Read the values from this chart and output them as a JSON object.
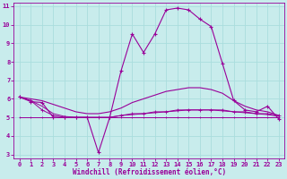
{
  "xlabel": "Windchill (Refroidissement éolien,°C)",
  "xlim": [
    -0.5,
    23.5
  ],
  "ylim": [
    2.8,
    11.2
  ],
  "xticks": [
    0,
    1,
    2,
    3,
    4,
    5,
    6,
    7,
    8,
    9,
    10,
    11,
    12,
    13,
    14,
    15,
    16,
    17,
    18,
    19,
    20,
    21,
    22,
    23
  ],
  "yticks": [
    3,
    4,
    5,
    6,
    7,
    8,
    9,
    10,
    11
  ],
  "bg_color": "#c8ecec",
  "line_color": "#990099",
  "grid_color": "#aadddd",
  "main_line_x": [
    0,
    1,
    2,
    3,
    4,
    5,
    6,
    7,
    8,
    9,
    10,
    11,
    12,
    13,
    14,
    15,
    16,
    17,
    18,
    19,
    20,
    21,
    22,
    23
  ],
  "main_line_y": [
    6.1,
    5.85,
    5.8,
    5.0,
    5.0,
    5.0,
    5.0,
    3.1,
    5.0,
    7.5,
    9.5,
    8.5,
    9.5,
    10.8,
    10.9,
    10.8,
    10.3,
    9.9,
    7.9,
    5.9,
    5.4,
    5.3,
    5.6,
    4.9
  ],
  "rising_line_x": [
    0,
    1,
    2,
    3,
    4,
    5,
    6,
    7,
    8,
    9,
    10,
    11,
    12,
    13,
    14,
    15,
    16,
    17,
    18,
    19,
    20,
    21,
    22,
    23
  ],
  "rising_line_y": [
    6.1,
    6.0,
    5.9,
    5.7,
    5.5,
    5.3,
    5.2,
    5.2,
    5.3,
    5.5,
    5.8,
    6.0,
    6.2,
    6.4,
    6.5,
    6.6,
    6.6,
    6.5,
    6.3,
    5.9,
    5.6,
    5.4,
    5.3,
    5.1
  ],
  "flat1_x": [
    0,
    1,
    2,
    3,
    4,
    5,
    6,
    7,
    8,
    9,
    10,
    11,
    12,
    13,
    14,
    15,
    16,
    17,
    18,
    19,
    20,
    21,
    22,
    23
  ],
  "flat1_y": [
    6.1,
    5.9,
    5.4,
    5.1,
    5.0,
    5.0,
    5.0,
    5.0,
    5.0,
    5.1,
    5.2,
    5.2,
    5.3,
    5.3,
    5.4,
    5.4,
    5.4,
    5.4,
    5.4,
    5.3,
    5.3,
    5.2,
    5.2,
    5.1
  ],
  "flat2_x": [
    0,
    1,
    2,
    3,
    4,
    5,
    6,
    7,
    8,
    9,
    10,
    11,
    12,
    13,
    14,
    15,
    16,
    17,
    18,
    19,
    20,
    21,
    22,
    23
  ],
  "flat2_y": [
    6.1,
    5.9,
    5.6,
    5.2,
    5.05,
    5.0,
    5.0,
    5.0,
    5.0,
    5.1,
    5.15,
    5.2,
    5.25,
    5.3,
    5.35,
    5.4,
    5.4,
    5.4,
    5.35,
    5.3,
    5.25,
    5.2,
    5.15,
    5.05
  ],
  "flat3_x": [
    0,
    1,
    2,
    3,
    4,
    5,
    6,
    7,
    8,
    9,
    10,
    11,
    12,
    13,
    14,
    15,
    16,
    17,
    18,
    19,
    20,
    21,
    22,
    23
  ],
  "flat3_y": [
    5.0,
    5.0,
    5.0,
    5.0,
    5.0,
    5.0,
    5.0,
    5.0,
    5.0,
    5.0,
    5.0,
    5.0,
    5.0,
    5.0,
    5.0,
    5.0,
    5.0,
    5.0,
    5.0,
    5.0,
    5.0,
    5.0,
    5.0,
    5.0
  ],
  "tickfontsize": 5.0,
  "labelfontsize": 5.5
}
